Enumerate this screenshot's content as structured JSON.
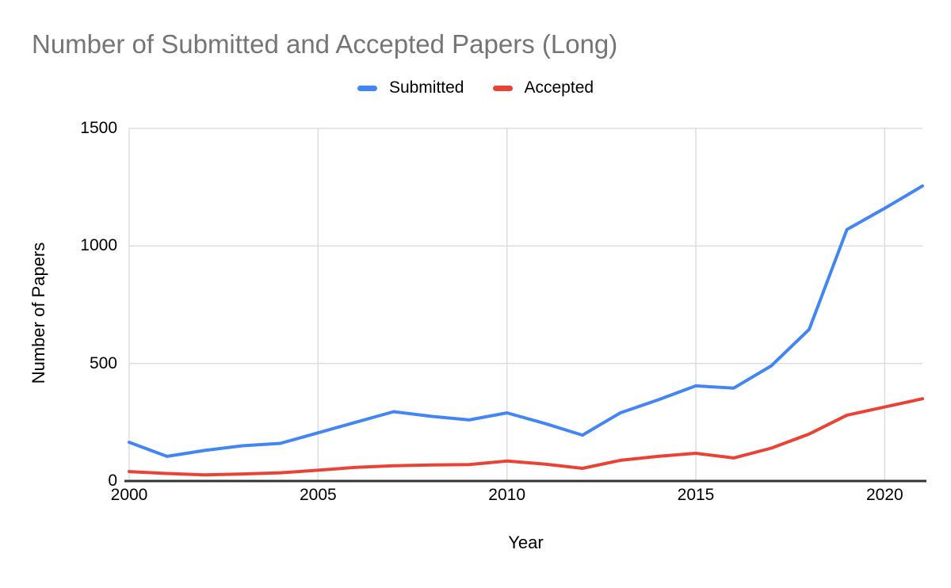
{
  "title": {
    "text": "Number of Submitted and Accepted Papers (Long)"
  },
  "colors": {
    "title_text": "#757575",
    "tick_text": "#000000",
    "grid": "#dddddd",
    "axis": "#333333",
    "background": "#ffffff",
    "submitted": "#4285f4",
    "accepted": "#ea4335"
  },
  "chart_data": {
    "type": "line",
    "title": "Number of Submitted and Accepted Papers (Long)",
    "xlabel": "Year",
    "ylabel": "Number of Papers",
    "x": [
      2000,
      2001,
      2002,
      2003,
      2004,
      2005,
      2006,
      2007,
      2008,
      2009,
      2010,
      2011,
      2012,
      2013,
      2014,
      2015,
      2016,
      2017,
      2018,
      2019,
      2020,
      2021
    ],
    "series": [
      {
        "name": "Submitted",
        "color": "#4285f4",
        "values": [
          165,
          105,
          130,
          150,
          160,
          205,
          250,
          295,
          275,
          260,
          290,
          245,
          195,
          290,
          345,
          405,
          395,
          490,
          645,
          1070,
          1160,
          1255
        ]
      },
      {
        "name": "Accepted",
        "color": "#ea4335",
        "values": [
          40,
          32,
          26,
          30,
          35,
          46,
          58,
          65,
          68,
          70,
          85,
          72,
          54,
          88,
          105,
          118,
          98,
          140,
          200,
          280,
          315,
          350
        ]
      }
    ],
    "xlim": [
      2000,
      2021
    ],
    "ylim": [
      0,
      1500
    ],
    "x_ticks": [
      2000,
      2005,
      2010,
      2015,
      2020
    ],
    "y_ticks": [
      0,
      500,
      1000,
      1500
    ],
    "grid": true,
    "legend_position": "top"
  }
}
